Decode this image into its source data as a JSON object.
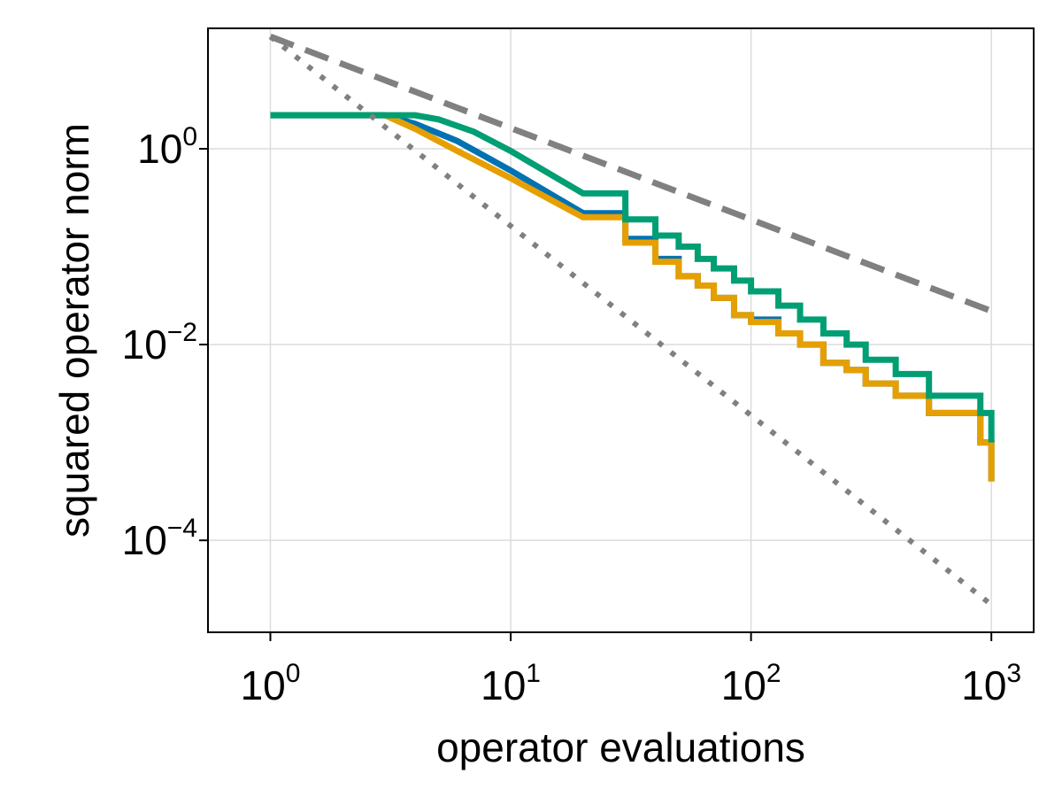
{
  "chart_data": {
    "type": "line",
    "title": "",
    "xlabel": "operator evaluations",
    "ylabel": "squared operator norm",
    "xscale": "log",
    "yscale": "log",
    "xlim": [
      0.55,
      1500
    ],
    "ylim": [
      1.15e-05,
      17
    ],
    "grid": true,
    "legend": "none",
    "x_ticks": [
      {
        "value": 1,
        "base": "10",
        "exp": "0"
      },
      {
        "value": 10,
        "base": "10",
        "exp": "1"
      },
      {
        "value": 100,
        "base": "10",
        "exp": "2"
      },
      {
        "value": 1000,
        "base": "10",
        "exp": "3"
      }
    ],
    "y_ticks": [
      {
        "value": 1,
        "base": "10",
        "exp": "0"
      },
      {
        "value": 0.01,
        "base": "10",
        "exp": "−2"
      },
      {
        "value": 0.0001,
        "base": "10",
        "exp": "−4"
      }
    ],
    "series": [
      {
        "color": "#0072b2",
        "style": "solid",
        "x": [
          1,
          3,
          4,
          6,
          10,
          20,
          30,
          40,
          50,
          60,
          70,
          85,
          100,
          130,
          160,
          200,
          250,
          300,
          400,
          550,
          900,
          1000
        ],
        "y": [
          2.2,
          2.2,
          1.8,
          1.2,
          0.6,
          0.22,
          0.12,
          0.075,
          0.05,
          0.04,
          0.03,
          0.02,
          0.018,
          0.013,
          0.01,
          0.0065,
          0.0055,
          0.004,
          0.003,
          0.002,
          0.001,
          0.0004
        ]
      },
      {
        "color": "#e69f00",
        "style": "solid",
        "x": [
          1,
          3,
          4,
          6,
          10,
          20,
          30,
          40,
          50,
          60,
          70,
          85,
          100,
          130,
          160,
          200,
          250,
          300,
          400,
          550,
          900,
          1000
        ],
        "y": [
          2.2,
          2.2,
          1.6,
          0.95,
          0.5,
          0.2,
          0.11,
          0.07,
          0.05,
          0.04,
          0.03,
          0.02,
          0.017,
          0.013,
          0.01,
          0.0065,
          0.0055,
          0.004,
          0.003,
          0.002,
          0.001,
          0.0004
        ]
      },
      {
        "color": "#009e73",
        "style": "solid",
        "x": [
          1,
          3,
          4,
          5,
          7,
          10,
          20,
          30,
          40,
          50,
          60,
          70,
          85,
          100,
          130,
          160,
          200,
          250,
          300,
          400,
          550,
          900,
          1000
        ],
        "y": [
          2.2,
          2.2,
          2.2,
          2.0,
          1.5,
          0.95,
          0.35,
          0.19,
          0.13,
          0.1,
          0.075,
          0.06,
          0.045,
          0.035,
          0.025,
          0.018,
          0.013,
          0.01,
          0.007,
          0.005,
          0.003,
          0.002,
          0.001
        ]
      },
      {
        "color": "#808080",
        "style": "dashed",
        "x": [
          1,
          1000
        ],
        "y": [
          14,
          0.022
        ]
      },
      {
        "color": "#808080",
        "style": "dotted",
        "x": [
          1,
          1000
        ],
        "y": [
          14,
          2.2e-05
        ]
      }
    ]
  }
}
